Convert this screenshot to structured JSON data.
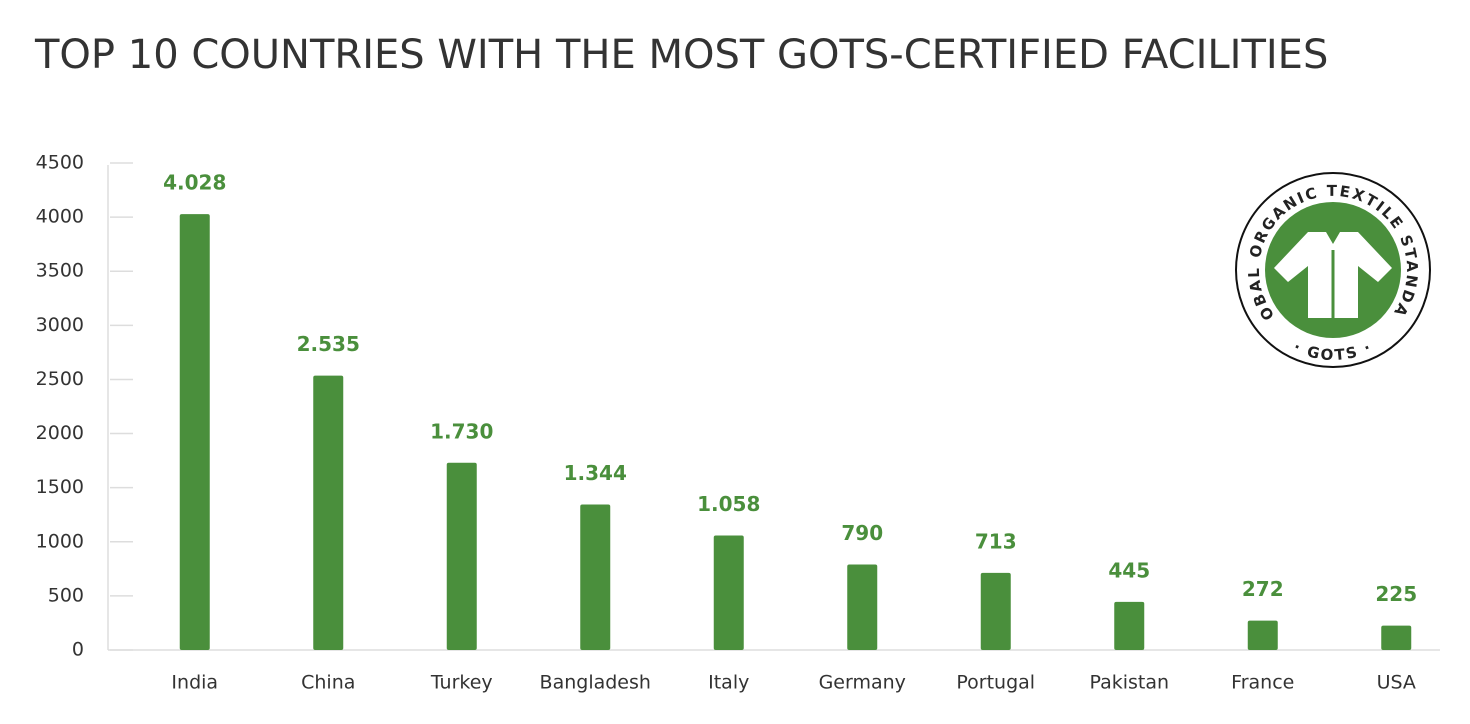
{
  "chart_data": {
    "type": "bar",
    "title": "TOP 10 COUNTRIES WITH THE MOST GOTS-CERTIFIED FACILITIES",
    "categories": [
      "India",
      "China",
      "Turkey",
      "Bangladesh",
      "Italy",
      "Germany",
      "Portugal",
      "Pakistan",
      "France",
      "USA"
    ],
    "values": [
      4028,
      2535,
      1730,
      1344,
      1058,
      790,
      713,
      445,
      272,
      225
    ],
    "value_labels": [
      "4.028",
      "2.535",
      "1.730",
      "1.344",
      "1.058",
      "790",
      "713",
      "445",
      "272",
      "225"
    ],
    "color": "#4a8f3c",
    "ylim": [
      0,
      4500
    ],
    "yticks": [
      0,
      500,
      1000,
      1500,
      2000,
      2500,
      3000,
      3500,
      4000,
      4500
    ],
    "grid": false
  },
  "logo": {
    "ring_top": "GLOBAL ORGANIC TEXTILE STANDARD",
    "ring_bottom": "· GOTS ·"
  }
}
